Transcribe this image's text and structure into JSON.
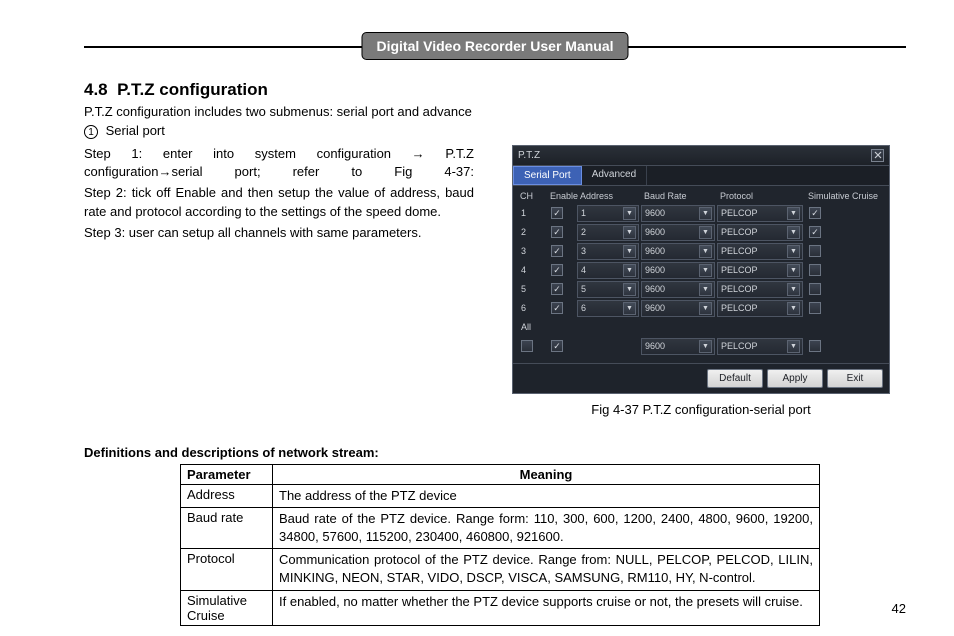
{
  "header": {
    "title": "Digital Video Recorder User Manual"
  },
  "section": {
    "number": "4.8",
    "title": "P.T.Z configuration",
    "intro": "P.T.Z configuration includes two submenus: serial port and advance",
    "subnum": "1",
    "subtitle": "Serial port",
    "step1": "Step 1: enter into system configuration → P.T.Z configuration→serial port; refer to Fig 4-37:",
    "step2": "Step 2: tick off Enable and then setup the value of address, baud rate and protocol according to the settings of the speed dome.",
    "step3": "Step 3: user can setup all channels with same parameters."
  },
  "ptz": {
    "window_title": "P.T.Z",
    "tabs": [
      "Serial Port",
      "Advanced"
    ],
    "headers": [
      "CH",
      "Enable",
      "Address",
      "Baud Rate",
      "Protocol",
      "Simulative Cruise"
    ],
    "rows": [
      {
        "ch": "1",
        "enable": true,
        "address": "1",
        "baud": "9600",
        "proto": "PELCOP",
        "sim": true
      },
      {
        "ch": "2",
        "enable": true,
        "address": "2",
        "baud": "9600",
        "proto": "PELCOP",
        "sim": true
      },
      {
        "ch": "3",
        "enable": true,
        "address": "3",
        "baud": "9600",
        "proto": "PELCOP",
        "sim": false
      },
      {
        "ch": "4",
        "enable": true,
        "address": "4",
        "baud": "9600",
        "proto": "PELCOP",
        "sim": false
      },
      {
        "ch": "5",
        "enable": true,
        "address": "5",
        "baud": "9600",
        "proto": "PELCOP",
        "sim": false
      },
      {
        "ch": "6",
        "enable": true,
        "address": "6",
        "baud": "9600",
        "proto": "PELCOP",
        "sim": false
      }
    ],
    "all_label": "All",
    "footer_row": {
      "enable": true,
      "baud": "9600",
      "proto": "PELCOP"
    },
    "buttons": [
      "Default",
      "Apply",
      "Exit"
    ]
  },
  "caption": "Fig 4-37 P.T.Z configuration-serial port",
  "defs": {
    "heading": "Definitions and descriptions of network stream:",
    "col_param": "Parameter",
    "col_mean": "Meaning",
    "rows": [
      {
        "param": "Address",
        "meaning": "The address of the PTZ device"
      },
      {
        "param": "Baud rate",
        "meaning": "Baud rate of the PTZ device. Range form: 110, 300, 600, 1200, 2400, 4800, 9600, 19200, 34800, 57600, 115200, 230400, 460800, 921600."
      },
      {
        "param": "Protocol",
        "meaning": "Communication protocol of the PTZ device. Range from: NULL, PELCOP, PELCOD, LILIN, MINKING, NEON, STAR, VIDO, DSCP, VISCA, SAMSUNG, RM110, HY, N-control."
      },
      {
        "param": "Simulative Cruise",
        "meaning": "If enabled, no matter whether the PTZ device supports cruise or not, the presets will cruise."
      }
    ]
  },
  "page_number": "42"
}
